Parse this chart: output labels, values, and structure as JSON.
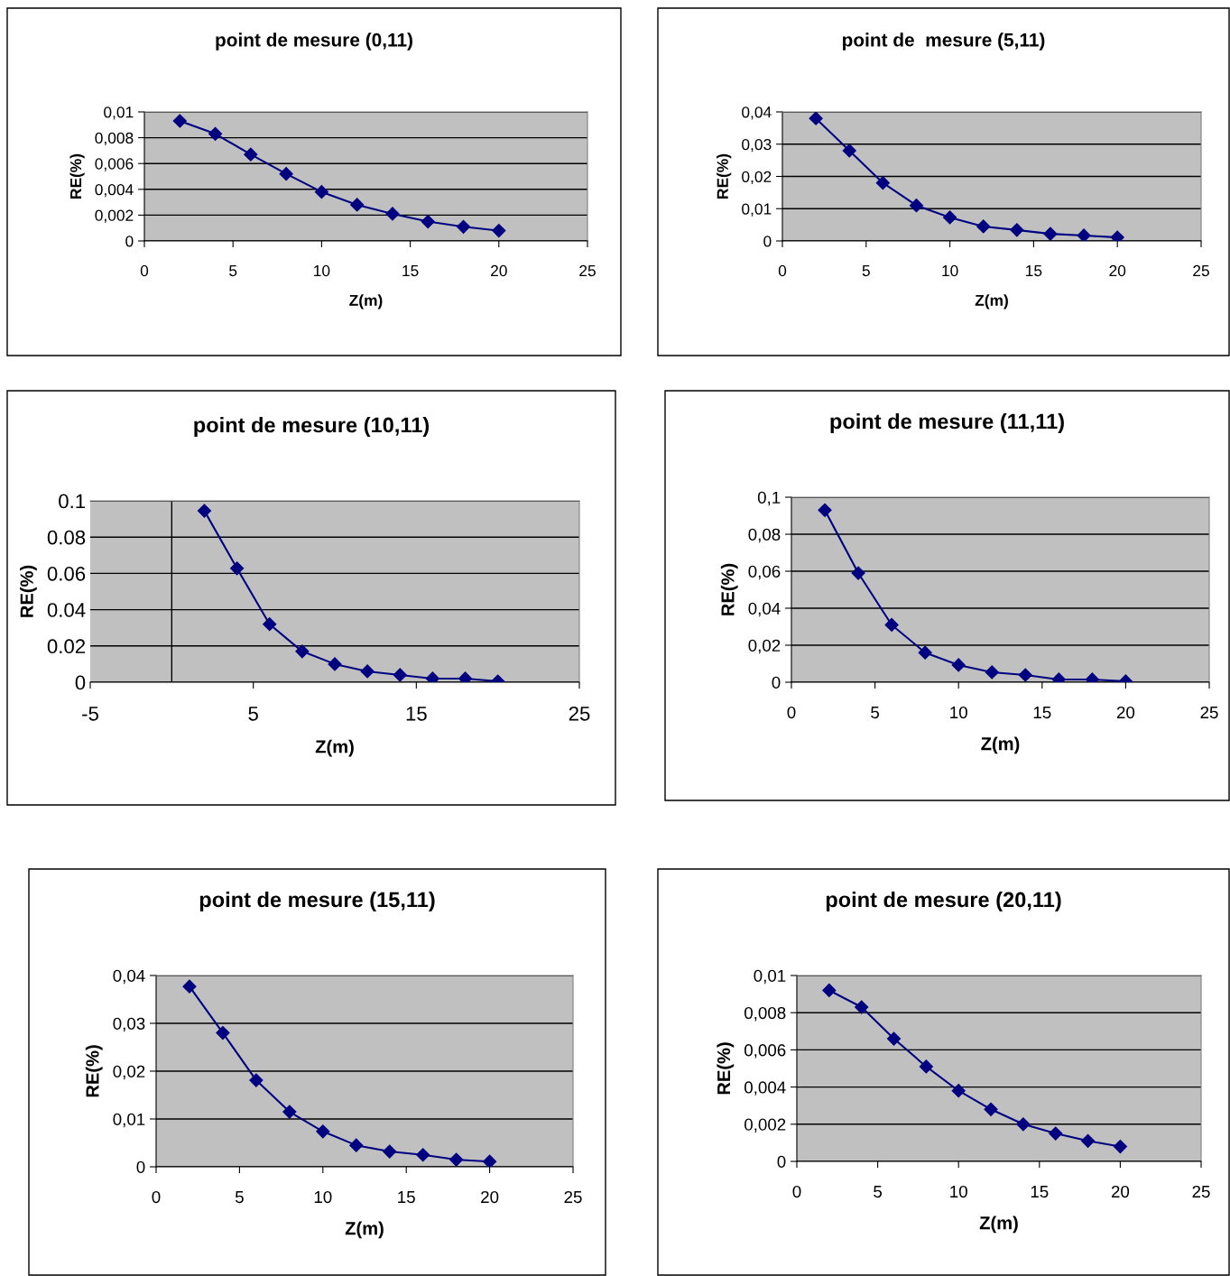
{
  "chart_data": [
    {
      "type": "line",
      "title": "point de mesure (0,11)",
      "xlabel": "Z(m)",
      "ylabel": "RE(%)",
      "x": [
        2,
        4,
        6,
        8,
        10,
        12,
        14,
        16,
        18,
        20
      ],
      "series": [
        {
          "color": "#000080",
          "values": [
            0.0093,
            0.0083,
            0.0067,
            0.0052,
            0.0038,
            0.0028,
            0.0021,
            0.0015,
            0.0011,
            0.0008
          ]
        }
      ],
      "xlim": [
        0,
        25
      ],
      "xticks": [
        0,
        5,
        10,
        15,
        20,
        25
      ],
      "ylim": [
        0,
        0.01
      ],
      "yticks": [
        0,
        {
          "value": 0.002,
          "label": "0,002"
        },
        {
          "value": 0.004,
          "label": "0,004"
        },
        {
          "value": 0.006,
          "label": "0,006"
        },
        {
          "value": 0.008,
          "label": "0,008"
        },
        {
          "value": 0.01,
          "label": "0,01"
        }
      ],
      "grid": "y",
      "marker": "diamond",
      "line_style": "solid"
    },
    {
      "type": "line",
      "title": "point de  mesure (5,11)",
      "xlabel": "Z(m)",
      "ylabel": "RE(%)",
      "x": [
        2,
        4,
        6,
        8,
        10,
        12,
        14,
        16,
        18,
        20
      ],
      "series": [
        {
          "color": "#000080",
          "values": [
            0.038,
            0.028,
            0.018,
            0.011,
            0.0073,
            0.0045,
            0.0034,
            0.0022,
            0.0017,
            0.0011
          ]
        }
      ],
      "xlim": [
        0,
        25
      ],
      "xticks": [
        0,
        5,
        10,
        15,
        20,
        25
      ],
      "ylim": [
        0,
        0.04
      ],
      "yticks": [
        0,
        {
          "value": 0.01,
          "label": "0,01"
        },
        {
          "value": 0.02,
          "label": "0,02"
        },
        {
          "value": 0.03,
          "label": "0,03"
        },
        {
          "value": 0.04,
          "label": "0,04"
        }
      ],
      "grid": "y",
      "marker": "diamond",
      "line_style": "solid"
    },
    {
      "type": "line",
      "title": "point de mesure (10,11)",
      "xlabel": "Z(m)",
      "ylabel": "RE(%)",
      "x": [
        2,
        4,
        6,
        8,
        10,
        12,
        14,
        16,
        18,
        20
      ],
      "series": [
        {
          "color": "#000080",
          "values": [
            0.0945,
            0.0628,
            0.032,
            0.017,
            0.01,
            0.006,
            0.004,
            0.002,
            0.002,
            0.0005
          ]
        }
      ],
      "xlim": [
        -5,
        25
      ],
      "xticks": [
        -5,
        5,
        15,
        25
      ],
      "ylim": [
        0,
        0.1
      ],
      "yticks": [
        0,
        0.02,
        0.04,
        0.06,
        0.08,
        0.1
      ],
      "grid": "y",
      "marker": "diamond",
      "line_style": "solid"
    },
    {
      "type": "line",
      "title": "point de mesure (11,11)",
      "xlabel": "Z(m)",
      "ylabel": "RE(%)",
      "x": [
        2,
        4,
        6,
        8,
        10,
        12,
        14,
        16,
        18,
        20
      ],
      "series": [
        {
          "color": "#000080",
          "values": [
            0.093,
            0.059,
            0.031,
            0.016,
            0.0093,
            0.0054,
            0.0039,
            0.0015,
            0.0015,
            0.0005
          ]
        }
      ],
      "xlim": [
        0,
        25
      ],
      "xticks": [
        0,
        5,
        10,
        15,
        20,
        25
      ],
      "ylim": [
        0,
        0.1
      ],
      "yticks": [
        0,
        {
          "value": 0.02,
          "label": "0,02"
        },
        {
          "value": 0.04,
          "label": "0,04"
        },
        {
          "value": 0.06,
          "label": "0,06"
        },
        {
          "value": 0.08,
          "label": "0,08"
        },
        {
          "value": 0.1,
          "label": "0,1"
        }
      ],
      "grid": "y",
      "marker": "diamond",
      "line_style": "solid"
    },
    {
      "type": "line",
      "title": "point de mesure (15,11)",
      "xlabel": "Z(m)",
      "ylabel": "RE(%)",
      "x": [
        2,
        4,
        6,
        8,
        10,
        12,
        14,
        16,
        18,
        20
      ],
      "series": [
        {
          "color": "#000080",
          "values": [
            0.0377,
            0.028,
            0.0181,
            0.0115,
            0.0074,
            0.0045,
            0.0032,
            0.0025,
            0.0015,
            0.0011
          ]
        }
      ],
      "xlim": [
        0,
        25
      ],
      "xticks": [
        0,
        5,
        10,
        15,
        20,
        25
      ],
      "ylim": [
        0,
        0.04
      ],
      "yticks": [
        0,
        {
          "value": 0.01,
          "label": "0,01"
        },
        {
          "value": 0.02,
          "label": "0,02"
        },
        {
          "value": 0.03,
          "label": "0,03"
        },
        {
          "value": 0.04,
          "label": "0,04"
        }
      ],
      "grid": "y",
      "marker": "diamond",
      "line_style": "solid"
    },
    {
      "type": "line",
      "title": "point de mesure (20,11)",
      "xlabel": "Z(m)",
      "ylabel": "RE(%)",
      "x": [
        2,
        4,
        6,
        8,
        10,
        12,
        14,
        16,
        18,
        20
      ],
      "series": [
        {
          "color": "#000080",
          "values": [
            0.0092,
            0.0083,
            0.0066,
            0.0051,
            0.0038,
            0.0028,
            0.002,
            0.0015,
            0.0011,
            0.0008
          ]
        }
      ],
      "xlim": [
        0,
        25
      ],
      "xticks": [
        0,
        5,
        10,
        15,
        20,
        25
      ],
      "ylim": [
        0,
        0.01
      ],
      "yticks": [
        0,
        {
          "value": 0.002,
          "label": "0,002"
        },
        {
          "value": 0.004,
          "label": "0,004"
        },
        {
          "value": 0.006,
          "label": "0,006"
        },
        {
          "value": 0.008,
          "label": "0,008"
        },
        {
          "value": 0.01,
          "label": "0,01"
        }
      ],
      "grid": "y",
      "marker": "diamond",
      "line_style": "solid"
    }
  ]
}
